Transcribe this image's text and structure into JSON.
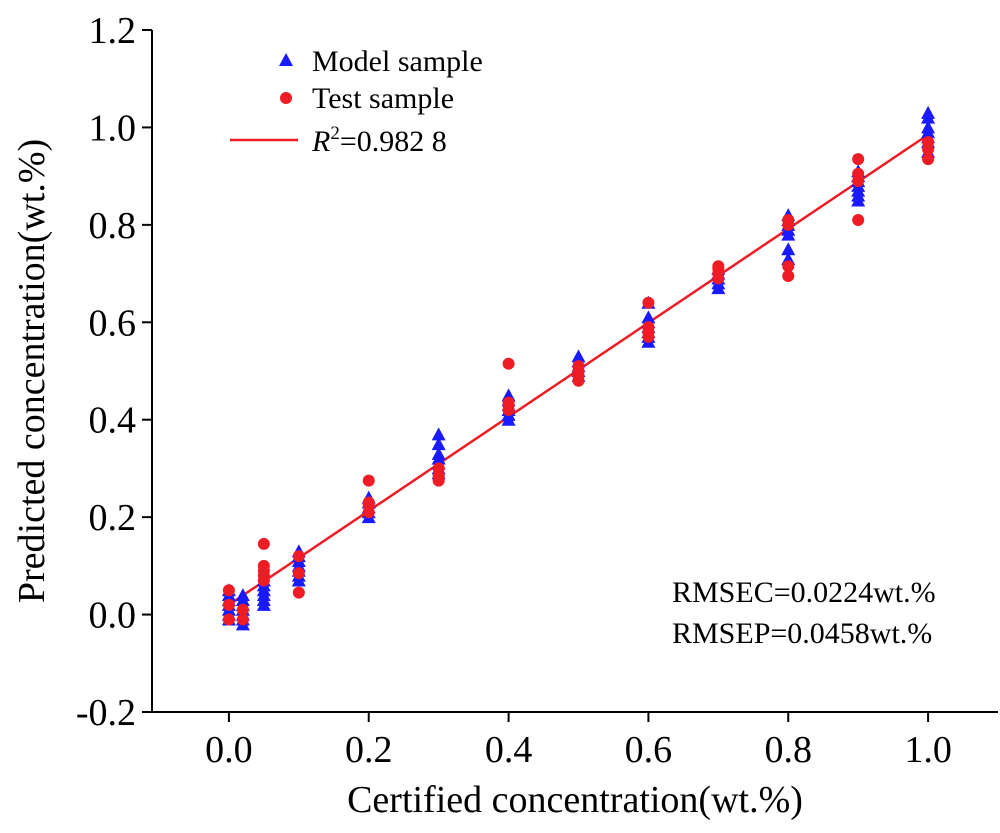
{
  "chart_data": {
    "type": "scatter",
    "xlabel": "Certified concentration(wt.%)",
    "ylabel": "Predicted concentration(wt.%)",
    "xlim": [
      -0.11,
      1.1
    ],
    "ylim": [
      -0.2,
      1.2
    ],
    "x_ticks": [
      0.0,
      0.2,
      0.4,
      0.6,
      0.8,
      1.0
    ],
    "x_tick_labels": [
      "0.0",
      "0.2",
      "0.4",
      "0.6",
      "0.8",
      "1.0"
    ],
    "y_ticks": [
      -0.2,
      0.0,
      0.2,
      0.4,
      0.6,
      0.8,
      1.0,
      1.2
    ],
    "y_tick_labels": [
      "-0.2",
      "0.0",
      "0.2",
      "0.4",
      "0.6",
      "0.8",
      "1.0",
      "1.2"
    ],
    "grid": false,
    "legend_position": "top-left",
    "legend": {
      "model_label": "Model sample",
      "test_label": "Test sample",
      "fit_label_prefix": "R",
      "fit_label_sup": "2",
      "fit_label_suffix": "=0.982 8"
    },
    "annotations": [
      "RMSEC=0.0224wt.%",
      "RMSEP=0.0458wt.%"
    ],
    "series": [
      {
        "name": "Model sample",
        "marker": "triangle",
        "color": "#1a1aff",
        "points": [
          [
            0.0,
            -0.01
          ],
          [
            0.0,
            0.0
          ],
          [
            0.0,
            0.01
          ],
          [
            0.0,
            0.02
          ],
          [
            0.0,
            0.03
          ],
          [
            0.0,
            0.04
          ],
          [
            0.0,
            0.05
          ],
          [
            0.02,
            -0.02
          ],
          [
            0.02,
            -0.01
          ],
          [
            0.02,
            0.0
          ],
          [
            0.02,
            0.01
          ],
          [
            0.02,
            0.02
          ],
          [
            0.02,
            0.03
          ],
          [
            0.02,
            0.04
          ],
          [
            0.05,
            0.02
          ],
          [
            0.05,
            0.03
          ],
          [
            0.05,
            0.04
          ],
          [
            0.05,
            0.05
          ],
          [
            0.05,
            0.06
          ],
          [
            0.05,
            0.07
          ],
          [
            0.1,
            0.07
          ],
          [
            0.1,
            0.08
          ],
          [
            0.1,
            0.09
          ],
          [
            0.1,
            0.1
          ],
          [
            0.1,
            0.11
          ],
          [
            0.1,
            0.12
          ],
          [
            0.1,
            0.13
          ],
          [
            0.2,
            0.2
          ],
          [
            0.2,
            0.21
          ],
          [
            0.2,
            0.22
          ],
          [
            0.2,
            0.23
          ],
          [
            0.2,
            0.24
          ],
          [
            0.3,
            0.29
          ],
          [
            0.3,
            0.3
          ],
          [
            0.3,
            0.31
          ],
          [
            0.3,
            0.32
          ],
          [
            0.3,
            0.33
          ],
          [
            0.3,
            0.35
          ],
          [
            0.3,
            0.37
          ],
          [
            0.4,
            0.4
          ],
          [
            0.4,
            0.41
          ],
          [
            0.4,
            0.42
          ],
          [
            0.4,
            0.43
          ],
          [
            0.4,
            0.44
          ],
          [
            0.4,
            0.45
          ],
          [
            0.5,
            0.49
          ],
          [
            0.5,
            0.5
          ],
          [
            0.5,
            0.51
          ],
          [
            0.5,
            0.52
          ],
          [
            0.5,
            0.53
          ],
          [
            0.6,
            0.56
          ],
          [
            0.6,
            0.57
          ],
          [
            0.6,
            0.58
          ],
          [
            0.6,
            0.59
          ],
          [
            0.6,
            0.6
          ],
          [
            0.6,
            0.61
          ],
          [
            0.6,
            0.64
          ],
          [
            0.7,
            0.67
          ],
          [
            0.7,
            0.68
          ],
          [
            0.7,
            0.69
          ],
          [
            0.7,
            0.7
          ],
          [
            0.7,
            0.71
          ],
          [
            0.8,
            0.73
          ],
          [
            0.8,
            0.75
          ],
          [
            0.8,
            0.78
          ],
          [
            0.8,
            0.79
          ],
          [
            0.8,
            0.8
          ],
          [
            0.8,
            0.81
          ],
          [
            0.8,
            0.82
          ],
          [
            0.9,
            0.85
          ],
          [
            0.9,
            0.86
          ],
          [
            0.9,
            0.87
          ],
          [
            0.9,
            0.88
          ],
          [
            0.9,
            0.89
          ],
          [
            0.9,
            0.9
          ],
          [
            0.9,
            0.91
          ],
          [
            1.0,
            0.95
          ],
          [
            1.0,
            0.97
          ],
          [
            1.0,
            0.98
          ],
          [
            1.0,
            0.99
          ],
          [
            1.0,
            1.0
          ],
          [
            1.0,
            1.02
          ],
          [
            1.0,
            1.03
          ]
        ]
      },
      {
        "name": "Test sample",
        "marker": "circle",
        "color": "#ee1c25",
        "points": [
          [
            0.0,
            -0.01
          ],
          [
            0.0,
            0.02
          ],
          [
            0.0,
            0.05
          ],
          [
            0.02,
            -0.01
          ],
          [
            0.02,
            0.01
          ],
          [
            0.05,
            0.07
          ],
          [
            0.05,
            0.08
          ],
          [
            0.05,
            0.09
          ],
          [
            0.05,
            0.1
          ],
          [
            0.05,
            0.145
          ],
          [
            0.1,
            0.045
          ],
          [
            0.1,
            0.085
          ],
          [
            0.1,
            0.12
          ],
          [
            0.2,
            0.21
          ],
          [
            0.2,
            0.225
          ],
          [
            0.2,
            0.23
          ],
          [
            0.2,
            0.275
          ],
          [
            0.3,
            0.275
          ],
          [
            0.3,
            0.285
          ],
          [
            0.3,
            0.3
          ],
          [
            0.4,
            0.42
          ],
          [
            0.4,
            0.43
          ],
          [
            0.4,
            0.435
          ],
          [
            0.4,
            0.515
          ],
          [
            0.5,
            0.48
          ],
          [
            0.5,
            0.49
          ],
          [
            0.5,
            0.5
          ],
          [
            0.5,
            0.51
          ],
          [
            0.6,
            0.57
          ],
          [
            0.6,
            0.58
          ],
          [
            0.6,
            0.59
          ],
          [
            0.6,
            0.64
          ],
          [
            0.7,
            0.69
          ],
          [
            0.7,
            0.7
          ],
          [
            0.7,
            0.71
          ],
          [
            0.7,
            0.715
          ],
          [
            0.8,
            0.695
          ],
          [
            0.8,
            0.715
          ],
          [
            0.8,
            0.8
          ],
          [
            0.8,
            0.81
          ],
          [
            0.9,
            0.81
          ],
          [
            0.9,
            0.89
          ],
          [
            0.9,
            0.905
          ],
          [
            0.9,
            0.935
          ],
          [
            1.0,
            0.935
          ],
          [
            1.0,
            0.955
          ],
          [
            1.0,
            0.97
          ]
        ]
      }
    ],
    "fit_line": {
      "name": "R2=0.982 8",
      "color": "#ee1c25",
      "x": [
        0.0,
        1.0
      ],
      "y": [
        0.02,
        0.985
      ]
    }
  }
}
